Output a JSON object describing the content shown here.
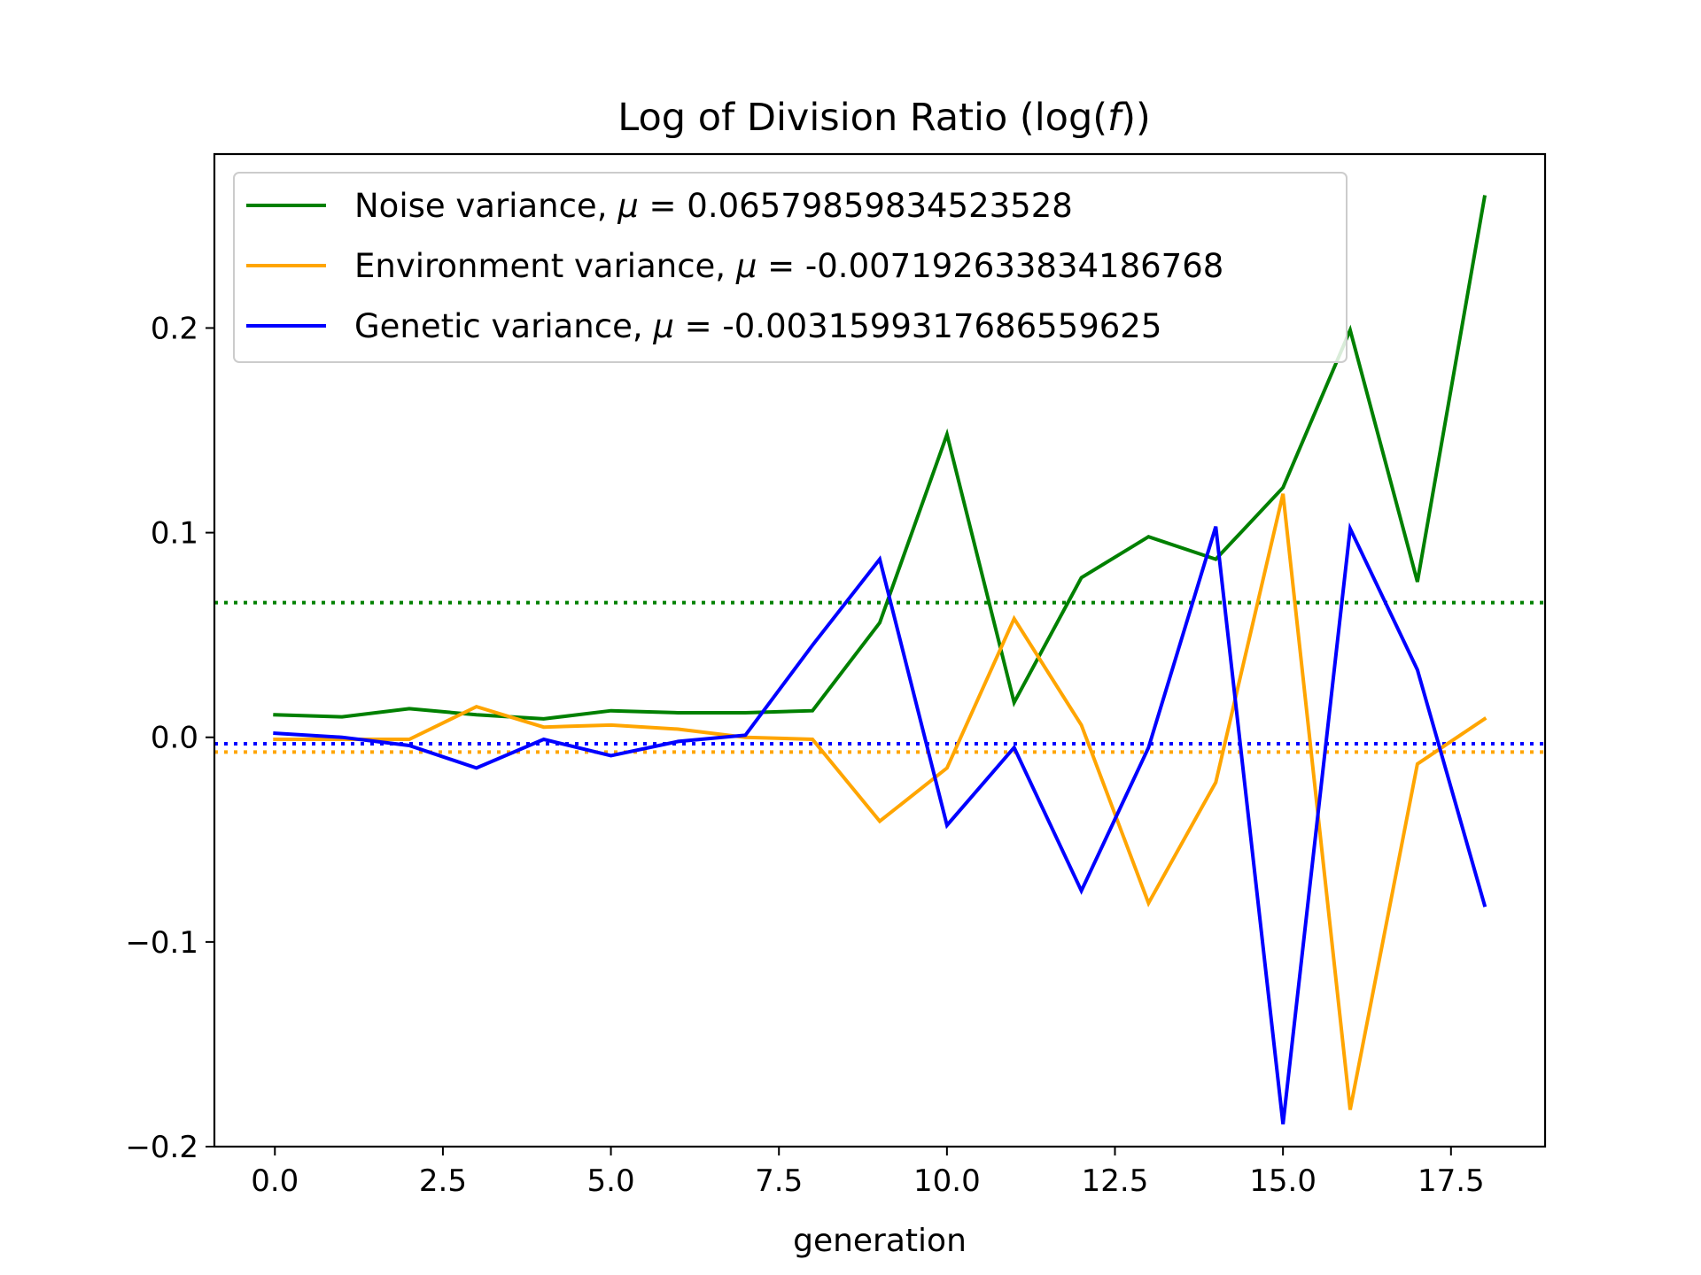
{
  "chart_data": {
    "type": "line",
    "title": "Log of Division Ratio (log(f))",
    "xlabel": "generation",
    "ylabel": "",
    "xlim": [
      -0.9,
      18.9
    ],
    "ylim": [
      -0.2,
      0.285
    ],
    "x_ticks": [
      0.0,
      2.5,
      5.0,
      7.5,
      10.0,
      12.5,
      15.0,
      17.5
    ],
    "x_tick_labels": [
      "0.0",
      "2.5",
      "5.0",
      "7.5",
      "10.0",
      "12.5",
      "15.0",
      "17.5"
    ],
    "y_ticks": [
      -0.2,
      -0.1,
      0.0,
      0.1,
      0.2
    ],
    "y_tick_labels": [
      "−0.2",
      "−0.1",
      "0.0",
      "0.1",
      "0.2"
    ],
    "grid": false,
    "legend_position": "upper-left",
    "x": [
      0,
      1,
      2,
      3,
      4,
      5,
      6,
      7,
      8,
      9,
      10,
      11,
      12,
      13,
      14,
      15,
      16,
      17,
      18
    ],
    "series": [
      {
        "name": "Noise variance, μ = 0.06579859834523528",
        "label_prefix": "Noise variance, ",
        "mu_text": "0.06579859834523528",
        "color": "#008000",
        "mean": 0.06579859834523528,
        "values": [
          0.011,
          0.01,
          0.014,
          0.011,
          0.009,
          0.013,
          0.012,
          0.012,
          0.013,
          0.056,
          0.148,
          0.017,
          0.078,
          0.098,
          0.087,
          0.122,
          0.199,
          0.076,
          0.264
        ]
      },
      {
        "name": "Environment variance, μ = -0.007192633834186768",
        "label_prefix": "Environment variance, ",
        "mu_text": "-0.007192633834186768",
        "color": "#FFA500",
        "mean": -0.007192633834186768,
        "values": [
          -0.001,
          -0.001,
          -0.001,
          0.015,
          0.005,
          0.006,
          0.004,
          0.0,
          -0.001,
          -0.041,
          -0.015,
          0.058,
          0.006,
          -0.081,
          -0.022,
          0.119,
          -0.182,
          -0.013,
          0.009
        ]
      },
      {
        "name": "Genetic variance, μ = -0.0031599317686559625",
        "label_prefix": "Genetic variance, ",
        "mu_text": "-0.0031599317686559625",
        "color": "#0000FF",
        "mean": -0.0031599317686559626,
        "values": [
          0.002,
          0.0,
          -0.004,
          -0.015,
          -0.001,
          -0.009,
          -0.002,
          0.001,
          0.045,
          0.087,
          -0.043,
          -0.005,
          -0.075,
          -0.005,
          0.103,
          -0.189,
          0.102,
          0.033,
          -0.082
        ]
      }
    ]
  }
}
